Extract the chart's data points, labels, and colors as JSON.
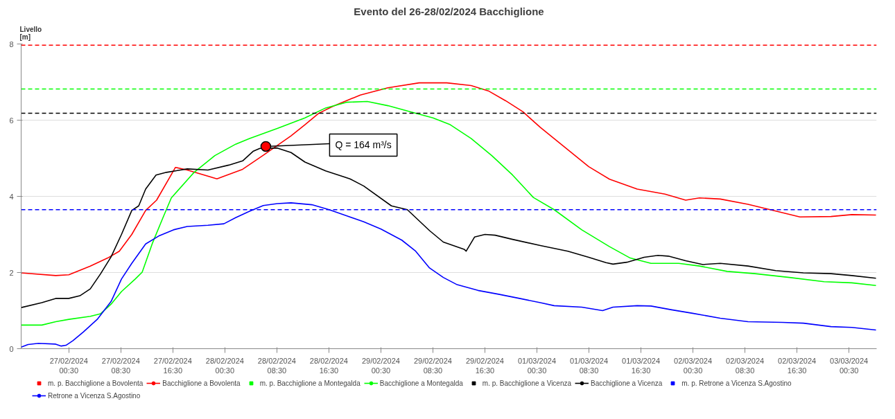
{
  "chart_data": {
    "type": "line",
    "title": "Evento del 26-28/02/2024 Bacchiglione",
    "ylabel": "Livello\n[m]",
    "xlim": [
      "2024-02-26T17:10",
      "2024-03-03T04:45"
    ],
    "xticks": [
      {
        "value": "2024-02-27T00:30",
        "label": "27/02/2024\n00:30"
      },
      {
        "value": "2024-02-27T08:30",
        "label": "27/02/2024\n08:30"
      },
      {
        "value": "2024-02-27T16:30",
        "label": "27/02/2024\n16:30"
      },
      {
        "value": "2024-02-28T00:30",
        "label": "28/02/2024\n00:30"
      },
      {
        "value": "2024-02-28T08:30",
        "label": "28/02/2024\n08:30"
      },
      {
        "value": "2024-02-28T16:30",
        "label": "28/02/2024\n16:30"
      },
      {
        "value": "2024-02-29T00:30",
        "label": "29/02/2024\n00:30"
      },
      {
        "value": "2024-02-29T08:30",
        "label": "29/02/2024\n08:30"
      },
      {
        "value": "2024-02-29T16:30",
        "label": "29/02/2024\n16:30"
      },
      {
        "value": "2024-03-01T00:30",
        "label": "01/03/2024\n00:30"
      },
      {
        "value": "2024-03-01T08:30",
        "label": "01/03/2024\n08:30"
      },
      {
        "value": "2024-03-01T16:30",
        "label": "01/03/2024\n16:30"
      },
      {
        "value": "2024-03-02T00:30",
        "label": "02/03/2024\n00:30"
      },
      {
        "value": "2024-03-02T08:30",
        "label": "02/03/2024\n08:30"
      },
      {
        "value": "2024-03-02T16:30",
        "label": "02/03/2024\n16:30"
      },
      {
        "value": "2024-03-03T00:30",
        "label": "03/03/2024\n00:30"
      }
    ],
    "ylim": [
      0,
      8
    ],
    "yticks": [
      0,
      2,
      4,
      6,
      8
    ],
    "grid": "y",
    "legend": "bottom",
    "line_style": "solid",
    "series": [
      {
        "name": "Bacchiglione a Bovolenta",
        "color": "#ff0000",
        "x": [
          "2024-02-26T17:10",
          "2024-02-26T22:29",
          "2024-02-27T00:30",
          "2024-02-27T03:48",
          "2024-02-27T06:28",
          "2024-02-27T08:16",
          "2024-02-27T10:11",
          "2024-02-27T12:19",
          "2024-02-27T14:00",
          "2024-02-27T16:54",
          "2024-02-27T18:43",
          "2024-02-27T23:17",
          "2024-02-28T03:14",
          "2024-02-28T06:25",
          "2024-02-28T10:41",
          "2024-02-28T12:49",
          "2024-02-28T14:56",
          "2024-02-28T17:04",
          "2024-02-28T21:20",
          "2024-02-29T01:35",
          "2024-02-29T06:23",
          "2024-02-29T10:38",
          "2024-02-29T14:22",
          "2024-02-29T17:01",
          "2024-02-29T19:41",
          "2024-02-29T22:21",
          "2024-03-01T01:01",
          "2024-03-01T04:12",
          "2024-03-01T08:28",
          "2024-03-01T11:40",
          "2024-03-01T15:55",
          "2024-03-01T20:11",
          "2024-03-01T23:23",
          "2024-03-02T01:30",
          "2024-03-02T04:42",
          "2024-03-02T08:58",
          "2024-03-02T12:09",
          "2024-03-02T16:57",
          "2024-03-02T21:44",
          "2024-03-03T00:56",
          "2024-03-03T04:39"
        ],
        "values": [
          1.99,
          1.92,
          1.94,
          2.17,
          2.38,
          2.56,
          3.0,
          3.63,
          3.9,
          4.76,
          4.69,
          4.46,
          4.71,
          5.08,
          5.59,
          5.88,
          6.18,
          6.36,
          6.66,
          6.85,
          6.98,
          6.98,
          6.91,
          6.77,
          6.51,
          6.22,
          5.81,
          5.37,
          4.78,
          4.45,
          4.19,
          4.06,
          3.9,
          3.96,
          3.93,
          3.79,
          3.66,
          3.46,
          3.47,
          3.52,
          3.51
        ]
      },
      {
        "name": "Bacchiglione a Montegalda",
        "color": "#00ff00",
        "x": [
          "2024-02-26T17:10",
          "2024-02-26T20:21",
          "2024-02-26T22:29",
          "2024-02-27T00:30",
          "2024-02-27T03:48",
          "2024-02-27T05:24",
          "2024-02-27T07:00",
          "2024-02-27T08:36",
          "2024-02-27T10:43",
          "2024-02-27T11:47",
          "2024-02-27T13:23",
          "2024-02-27T14:59",
          "2024-02-27T16:16",
          "2024-02-27T19:46",
          "2024-02-27T22:58",
          "2024-02-28T02:10",
          "2024-02-28T04:18",
          "2024-02-28T08:33",
          "2024-02-28T12:49",
          "2024-02-28T16:00",
          "2024-02-28T19:12",
          "2024-02-28T22:24",
          "2024-02-29T01:35",
          "2024-02-29T05:51",
          "2024-02-29T08:31",
          "2024-02-29T11:10",
          "2024-02-29T14:22",
          "2024-02-29T17:33",
          "2024-02-29T20:45",
          "2024-02-29T23:57",
          "2024-03-01T03:09",
          "2024-03-01T07:24",
          "2024-03-01T11:40",
          "2024-03-01T14:51",
          "2024-03-01T18:03",
          "2024-03-01T22:19",
          "2024-03-02T01:30",
          "2024-03-02T05:46",
          "2024-03-02T10:02",
          "2024-03-02T15:21",
          "2024-03-02T20:40",
          "2024-03-03T00:56",
          "2024-03-03T04:39"
        ],
        "values": [
          0.62,
          0.62,
          0.71,
          0.77,
          0.85,
          0.92,
          1.17,
          1.5,
          1.83,
          2.01,
          2.78,
          3.44,
          3.96,
          4.63,
          5.07,
          5.37,
          5.52,
          5.78,
          6.06,
          6.32,
          6.47,
          6.49,
          6.38,
          6.18,
          6.06,
          5.88,
          5.52,
          5.07,
          4.56,
          3.97,
          3.65,
          3.12,
          2.68,
          2.38,
          2.24,
          2.24,
          2.17,
          2.03,
          1.97,
          1.87,
          1.76,
          1.73,
          1.66
        ]
      },
      {
        "name": "Bacchiglione a Vicenza",
        "color": "#000000",
        "x": [
          "2024-02-26T17:10",
          "2024-02-26T20:21",
          "2024-02-26T22:29",
          "2024-02-27T00:30",
          "2024-02-27T02:12",
          "2024-02-27T03:48",
          "2024-02-27T05:24",
          "2024-02-27T07:00",
          "2024-02-27T08:36",
          "2024-02-27T10:11",
          "2024-02-27T11:15",
          "2024-02-27T12:19",
          "2024-02-27T13:55",
          "2024-02-27T15:31",
          "2024-02-27T18:43",
          "2024-02-27T21:54",
          "2024-02-28T01:06",
          "2024-02-28T03:14",
          "2024-02-28T04:50",
          "2024-02-28T05:53",
          "2024-02-28T08:33",
          "2024-02-28T10:41",
          "2024-02-28T12:49",
          "2024-02-28T16:00",
          "2024-02-28T19:44",
          "2024-02-28T21:52",
          "2024-02-29T02:07",
          "2024-02-29T04:34",
          "2024-02-29T07:59",
          "2024-02-29T10:06",
          "2024-02-29T13:18",
          "2024-02-29T13:37",
          "2024-02-29T14:54",
          "2024-02-29T16:30",
          "2024-02-29T18:05",
          "2024-02-29T20:45",
          "2024-03-01T01:01",
          "2024-03-01T05:16",
          "2024-03-01T08:28",
          "2024-03-01T11:08",
          "2024-03-01T12:12",
          "2024-03-01T14:20",
          "2024-03-01T16:59",
          "2024-03-01T19:07",
          "2024-03-01T20:43",
          "2024-03-01T23:23",
          "2024-03-02T02:02",
          "2024-03-02T04:42",
          "2024-03-02T08:58",
          "2024-03-02T13:13",
          "2024-03-02T17:29",
          "2024-03-02T21:44",
          "2024-03-03T00:56",
          "2024-03-03T04:39"
        ],
        "values": [
          1.08,
          1.21,
          1.32,
          1.32,
          1.39,
          1.57,
          1.97,
          2.41,
          3.0,
          3.63,
          3.75,
          4.19,
          4.56,
          4.63,
          4.72,
          4.69,
          4.82,
          4.93,
          5.18,
          5.26,
          5.27,
          5.15,
          4.9,
          4.67,
          4.46,
          4.27,
          3.75,
          3.65,
          3.1,
          2.8,
          2.61,
          2.56,
          2.93,
          3.0,
          2.98,
          2.87,
          2.71,
          2.56,
          2.4,
          2.26,
          2.22,
          2.27,
          2.4,
          2.45,
          2.43,
          2.31,
          2.21,
          2.24,
          2.17,
          2.05,
          1.99,
          1.97,
          1.92,
          1.85
        ]
      },
      {
        "name": "Retrone a Vicenza S.Agostino",
        "color": "#0000ff",
        "x": [
          "2024-02-26T17:10",
          "2024-02-26T18:13",
          "2024-02-26T19:49",
          "2024-02-26T22:29",
          "2024-02-26T23:20",
          "2024-02-27T00:04",
          "2024-02-27T01:08",
          "2024-02-27T02:44",
          "2024-02-27T04:52",
          "2024-02-27T07:00",
          "2024-02-27T08:36",
          "2024-02-27T10:11",
          "2024-02-27T12:19",
          "2024-02-27T14:27",
          "2024-02-27T16:35",
          "2024-02-27T18:43",
          "2024-02-27T21:54",
          "2024-02-28T00:21",
          "2024-02-28T02:10",
          "2024-02-28T04:18",
          "2024-02-28T06:25",
          "2024-02-28T08:33",
          "2024-02-28T10:41",
          "2024-02-28T13:53",
          "2024-02-28T16:32",
          "2024-02-28T19:12",
          "2024-02-28T21:52",
          "2024-02-29T00:31",
          "2024-02-29T03:43",
          "2024-02-29T05:51",
          "2024-02-29T07:59",
          "2024-02-29T10:06",
          "2024-02-29T12:14",
          "2024-02-29T15:26",
          "2024-02-29T18:37",
          "2024-02-29T21:49",
          "2024-03-01T01:01",
          "2024-03-01T03:09",
          "2024-03-01T07:24",
          "2024-03-01T10:36",
          "2024-03-01T12:12",
          "2024-03-01T15:55",
          "2024-03-01T18:03",
          "2024-03-01T21:15",
          "2024-03-02T00:27",
          "2024-03-02T04:42",
          "2024-03-02T08:58",
          "2024-03-02T14:17",
          "2024-03-02T17:29",
          "2024-03-02T21:44",
          "2024-03-03T00:56",
          "2024-03-03T04:39"
        ],
        "values": [
          0.04,
          0.11,
          0.14,
          0.12,
          0.07,
          0.09,
          0.21,
          0.44,
          0.77,
          1.24,
          1.83,
          2.24,
          2.75,
          2.97,
          3.12,
          3.21,
          3.24,
          3.28,
          3.44,
          3.61,
          3.76,
          3.81,
          3.83,
          3.78,
          3.65,
          3.49,
          3.33,
          3.14,
          2.85,
          2.56,
          2.12,
          1.87,
          1.68,
          1.53,
          1.43,
          1.32,
          1.21,
          1.13,
          1.09,
          1.0,
          1.09,
          1.13,
          1.12,
          1.02,
          0.93,
          0.8,
          0.71,
          0.69,
          0.67,
          0.58,
          0.56,
          0.49
        ]
      }
    ],
    "ref_lines": [
      {
        "axis": "y",
        "value": 7.97,
        "label": "m. p. Bacchiglione a Bovolenta",
        "color": "#ff0000",
        "line_style": "dashed"
      },
      {
        "axis": "y",
        "value": 6.82,
        "label": "m. p. Bacchiglione a Montegalda",
        "color": "#00ff00",
        "line_style": "dashed"
      },
      {
        "axis": "y",
        "value": 6.18,
        "label": "m. p. Bacchiglione a Vicenza",
        "color": "#000000",
        "line_style": "dashed"
      },
      {
        "axis": "y",
        "value": 3.65,
        "label": "m. p. Retrone a Vicenza S.Agostino",
        "color": "#0000ff",
        "line_style": "dashed"
      }
    ],
    "annotations": [
      {
        "text": "Q = 164 m³/s",
        "x": "2024-02-28T06:48",
        "y": 5.31
      }
    ]
  }
}
